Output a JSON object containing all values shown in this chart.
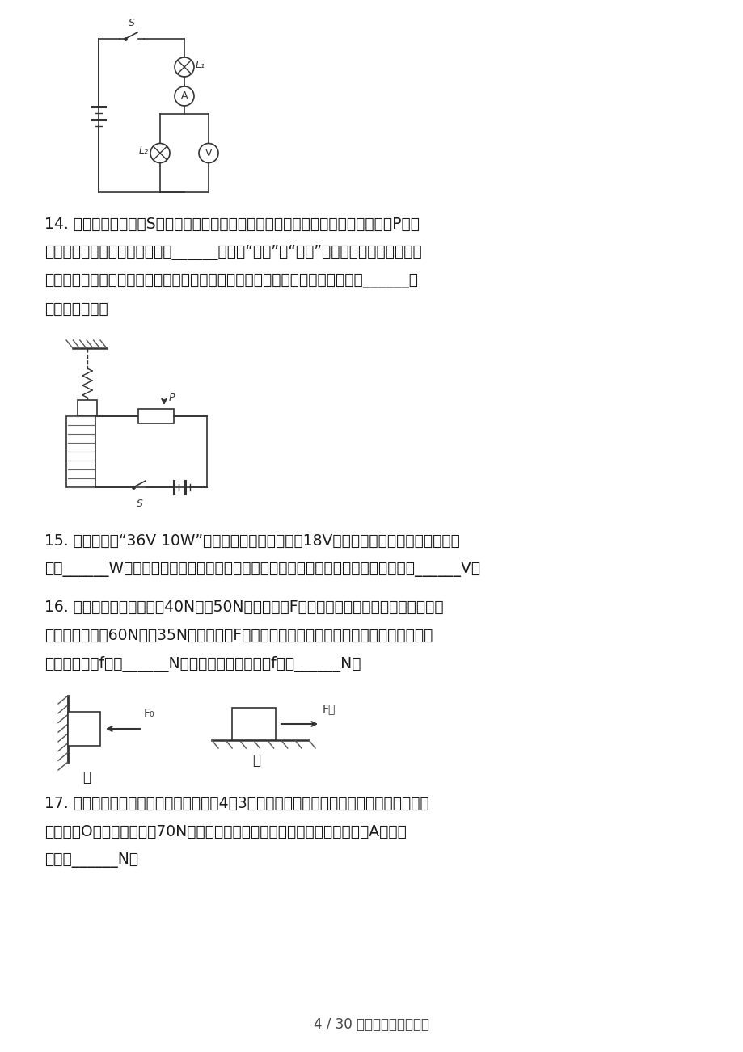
{
  "bg_color": "#ffffff",
  "page_width": 9.2,
  "page_height": 13.02,
  "text_color": "#1a1a1a",
  "q14_lines": [
    "14. 如图所示，当开关S闭合后，悬挂的小磁铁处于静止状态，若滑动变阵器的滑片P向右",
    "移动，则悬挂小磁铁的弹簧将会______（选填“伸长”或“缩短”）。电动摩托是现在人们",
    "常用的交通工具，电动摩托的动力来自电动摩托上的电动机；电动机工作时是把______能",
    "转化为机械能。"
  ],
  "q15_lines": [
    "15. 将一个标有“36V 10W”字样的灯泡，接到电压为18V的电源上，此时该灯泡的实际功",
    "率为______W（灯丝电阔不随温度改变）。由三节新干电池串联组成的电池组的电压为______V。"
  ],
  "q16_lines": [
    "16. 如图甲所示，物体甲重40N，被50N的水平压力F甲压在纭直墙壁上保持静止，如图乙",
    "所示，物体乙重60N，在35N的水平拉力F乙作用下，沿水平桐面匀速向右运动，则物体甲",
    "受到的摩擦力f甲为______N，物体乙受到的摩擦力f乙为______N。"
  ],
  "q17_lines": [
    "17. 如图所示，将一根质量均匀的铁棒扩4：3的比例折成直角后，一端用绞链固定在墙上，",
    "铁棒能绕O点转动，此棒重70N，若要保持此棒在如图所示位置平衡，则加在A端的最",
    "小力为______N。"
  ],
  "footer": "4 / 30 文档可自由编辑打印"
}
